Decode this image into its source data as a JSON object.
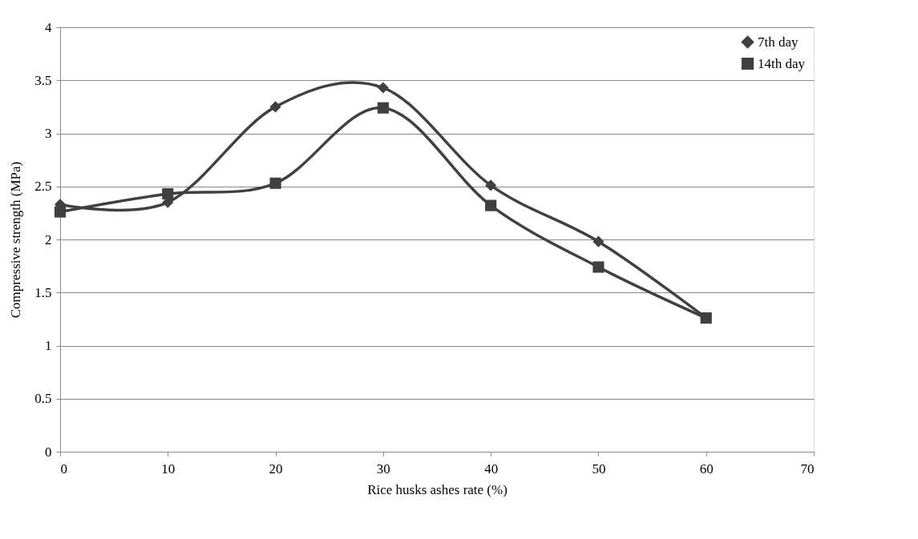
{
  "chart_data": {
    "type": "line",
    "xlabel": "Rice husks ashes rate (%)",
    "ylabel": "Compressive strength  (MPa)",
    "x": [
      0,
      10,
      20,
      30,
      40,
      50,
      60
    ],
    "series": [
      {
        "name": "7th day",
        "color": "#404040",
        "marker": "diamond",
        "values": [
          2.33,
          2.35,
          3.25,
          3.43,
          2.51,
          1.98,
          1.26
        ]
      },
      {
        "name": "14th day",
        "color": "#404040",
        "marker": "square",
        "values": [
          2.26,
          2.43,
          2.53,
          3.24,
          2.32,
          1.74,
          1.26
        ]
      }
    ],
    "xlim": [
      0,
      70
    ],
    "xticks": [
      0,
      10,
      20,
      30,
      40,
      50,
      60,
      70
    ],
    "ylim": [
      0,
      4
    ],
    "yticks": [
      0,
      0.5,
      1,
      1.5,
      2,
      2.5,
      3,
      3.5,
      4
    ],
    "grid": "y",
    "legend": "top right"
  }
}
